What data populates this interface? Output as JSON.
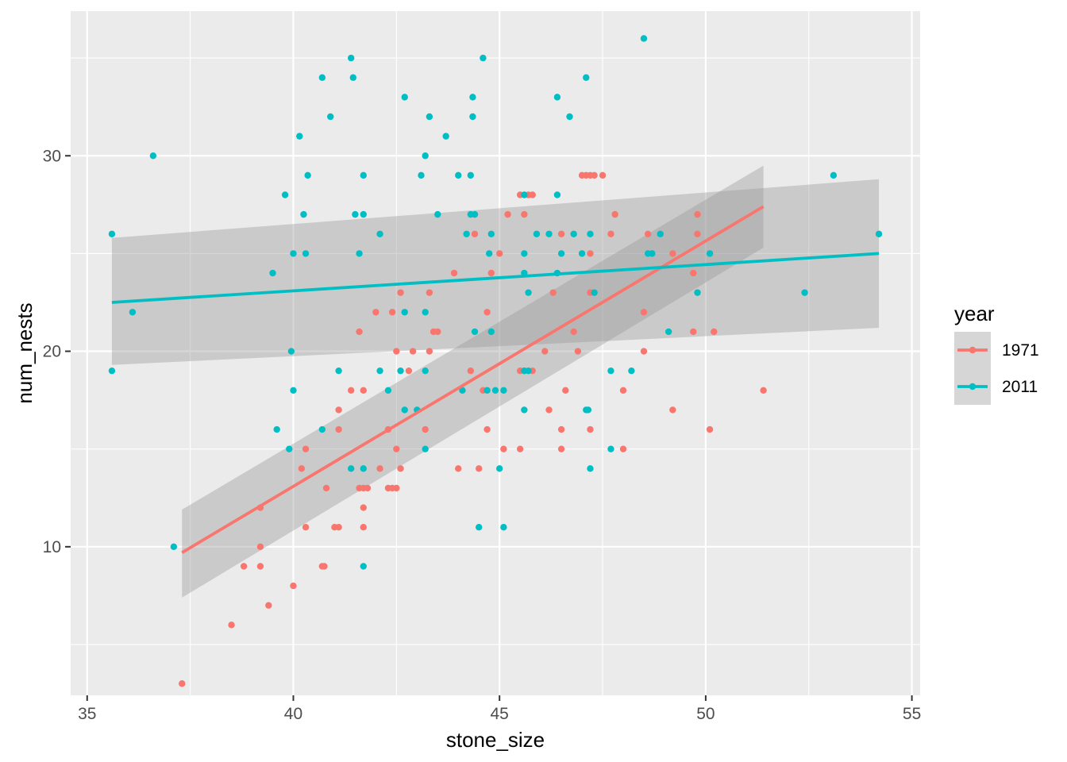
{
  "chart_data": {
    "type": "scatter",
    "xlabel": "stone_size",
    "ylabel": "num_nests",
    "xlim": [
      34.6,
      55.2
    ],
    "ylim": [
      2.4,
      37.4
    ],
    "x_ticks": [
      35,
      40,
      45,
      50,
      55
    ],
    "y_ticks": [
      10,
      20,
      30
    ],
    "x_tick_labels": [
      "35",
      "40",
      "45",
      "50",
      "55"
    ],
    "y_tick_labels": [
      "10",
      "20",
      "30"
    ],
    "grid": true,
    "background": "#ebebeb",
    "legend": {
      "title": "year",
      "position": "right"
    },
    "series": [
      {
        "name": "1971",
        "color": "#f8766d",
        "points": [
          [
            37.3,
            3
          ],
          [
            38.5,
            6
          ],
          [
            38.8,
            9
          ],
          [
            39.2,
            9
          ],
          [
            39.2,
            10
          ],
          [
            39.2,
            12
          ],
          [
            39.4,
            7
          ],
          [
            40.0,
            8
          ],
          [
            40.2,
            14
          ],
          [
            40.3,
            11
          ],
          [
            40.3,
            15
          ],
          [
            40.7,
            9
          ],
          [
            40.75,
            9
          ],
          [
            40.8,
            13
          ],
          [
            41.0,
            11
          ],
          [
            41.1,
            11
          ],
          [
            41.1,
            16
          ],
          [
            41.1,
            17
          ],
          [
            41.4,
            18
          ],
          [
            41.6,
            21
          ],
          [
            41.6,
            13
          ],
          [
            41.7,
            13
          ],
          [
            41.7,
            12
          ],
          [
            41.7,
            11
          ],
          [
            41.7,
            18
          ],
          [
            41.8,
            13
          ],
          [
            42.0,
            22
          ],
          [
            42.1,
            14
          ],
          [
            42.3,
            16
          ],
          [
            42.3,
            13
          ],
          [
            42.4,
            13
          ],
          [
            42.4,
            22
          ],
          [
            42.5,
            13
          ],
          [
            42.5,
            15
          ],
          [
            42.5,
            20
          ],
          [
            42.6,
            14
          ],
          [
            42.6,
            23
          ],
          [
            42.8,
            19
          ],
          [
            42.9,
            20
          ],
          [
            43.2,
            16
          ],
          [
            43.3,
            20
          ],
          [
            43.3,
            23
          ],
          [
            43.4,
            21
          ],
          [
            43.5,
            21
          ],
          [
            43.9,
            24
          ],
          [
            44.0,
            14
          ],
          [
            44.3,
            19
          ],
          [
            44.4,
            26
          ],
          [
            44.5,
            14
          ],
          [
            44.6,
            18
          ],
          [
            44.7,
            16
          ],
          [
            44.7,
            22
          ],
          [
            44.8,
            24
          ],
          [
            45.0,
            25
          ],
          [
            45.1,
            15
          ],
          [
            45.2,
            27
          ],
          [
            45.5,
            19
          ],
          [
            45.5,
            28
          ],
          [
            45.5,
            15
          ],
          [
            45.6,
            19
          ],
          [
            45.6,
            27
          ],
          [
            45.7,
            28
          ],
          [
            45.8,
            28
          ],
          [
            45.8,
            19
          ],
          [
            46.1,
            20
          ],
          [
            46.2,
            17
          ],
          [
            46.3,
            23
          ],
          [
            46.5,
            26
          ],
          [
            46.5,
            16
          ],
          [
            46.6,
            18
          ],
          [
            46.5,
            15
          ],
          [
            46.8,
            21
          ],
          [
            46.9,
            20
          ],
          [
            47.0,
            29
          ],
          [
            47.1,
            29
          ],
          [
            47.2,
            29
          ],
          [
            47.3,
            29
          ],
          [
            47.5,
            29
          ],
          [
            47.2,
            25
          ],
          [
            47.2,
            16
          ],
          [
            47.2,
            23
          ],
          [
            47.7,
            26
          ],
          [
            47.8,
            27
          ],
          [
            48.0,
            18
          ],
          [
            48.0,
            15
          ],
          [
            48.5,
            22
          ],
          [
            48.5,
            20
          ],
          [
            48.6,
            26
          ],
          [
            49.2,
            17
          ],
          [
            49.2,
            25
          ],
          [
            49.7,
            24
          ],
          [
            49.7,
            21
          ],
          [
            49.8,
            26
          ],
          [
            49.8,
            27
          ],
          [
            50.1,
            16
          ],
          [
            50.2,
            21
          ],
          [
            51.4,
            18
          ]
        ],
        "trend": {
          "x": [
            37.3,
            51.4
          ],
          "y": [
            9.7,
            27.4
          ],
          "ci_low": [
            7.4,
            25.3
          ],
          "ci_high": [
            11.9,
            29.5
          ]
        }
      },
      {
        "name": "2011",
        "color": "#00bfc4",
        "points": [
          [
            35.6,
            26
          ],
          [
            35.6,
            19
          ],
          [
            36.1,
            22
          ],
          [
            36.6,
            30
          ],
          [
            37.1,
            10
          ],
          [
            39.5,
            24
          ],
          [
            39.6,
            16
          ],
          [
            39.8,
            28
          ],
          [
            39.9,
            15
          ],
          [
            39.95,
            20
          ],
          [
            40.0,
            25
          ],
          [
            40.0,
            18
          ],
          [
            40.15,
            31
          ],
          [
            40.25,
            27
          ],
          [
            40.3,
            25
          ],
          [
            40.35,
            29
          ],
          [
            40.7,
            34
          ],
          [
            40.7,
            16
          ],
          [
            40.9,
            32
          ],
          [
            41.1,
            19
          ],
          [
            41.4,
            35
          ],
          [
            41.45,
            34
          ],
          [
            41.4,
            14
          ],
          [
            41.5,
            27
          ],
          [
            41.6,
            25
          ],
          [
            41.7,
            27
          ],
          [
            41.7,
            29
          ],
          [
            41.7,
            14
          ],
          [
            41.7,
            9
          ],
          [
            42.1,
            19
          ],
          [
            42.1,
            26
          ],
          [
            42.3,
            18
          ],
          [
            42.6,
            19
          ],
          [
            42.7,
            33
          ],
          [
            42.7,
            17
          ],
          [
            42.7,
            22
          ],
          [
            43.0,
            17
          ],
          [
            43.1,
            29
          ],
          [
            43.2,
            30
          ],
          [
            43.2,
            22
          ],
          [
            43.2,
            19
          ],
          [
            43.2,
            15
          ],
          [
            43.3,
            32
          ],
          [
            43.5,
            27
          ],
          [
            43.7,
            31
          ],
          [
            44.0,
            29
          ],
          [
            44.1,
            18
          ],
          [
            44.2,
            26
          ],
          [
            44.3,
            27
          ],
          [
            44.35,
            33
          ],
          [
            44.35,
            32
          ],
          [
            44.3,
            29
          ],
          [
            44.4,
            27
          ],
          [
            44.4,
            21
          ],
          [
            44.5,
            11
          ],
          [
            44.6,
            35
          ],
          [
            44.7,
            18
          ],
          [
            44.75,
            25
          ],
          [
            44.8,
            26
          ],
          [
            44.8,
            21
          ],
          [
            44.9,
            18
          ],
          [
            45.0,
            14
          ],
          [
            45.1,
            11
          ],
          [
            45.1,
            18
          ],
          [
            45.6,
            25
          ],
          [
            45.6,
            28
          ],
          [
            45.6,
            24
          ],
          [
            45.6,
            17
          ],
          [
            45.6,
            19
          ],
          [
            45.7,
            19
          ],
          [
            45.7,
            23
          ],
          [
            45.9,
            26
          ],
          [
            46.2,
            26
          ],
          [
            46.4,
            33
          ],
          [
            46.4,
            28
          ],
          [
            46.4,
            24
          ],
          [
            46.5,
            25
          ],
          [
            46.7,
            32
          ],
          [
            46.8,
            26
          ],
          [
            47.0,
            25
          ],
          [
            47.1,
            34
          ],
          [
            47.1,
            17
          ],
          [
            47.15,
            17
          ],
          [
            47.2,
            14
          ],
          [
            47.2,
            26
          ],
          [
            47.3,
            23
          ],
          [
            47.7,
            19
          ],
          [
            47.7,
            15
          ],
          [
            48.2,
            19
          ],
          [
            48.5,
            36
          ],
          [
            48.6,
            25
          ],
          [
            48.7,
            25
          ],
          [
            48.9,
            26
          ],
          [
            49.1,
            21
          ],
          [
            49.8,
            23
          ],
          [
            50.1,
            25
          ],
          [
            52.4,
            23
          ],
          [
            53.1,
            29
          ],
          [
            54.2,
            26
          ]
        ],
        "trend": {
          "x": [
            35.6,
            54.2
          ],
          "y": [
            22.5,
            25.0
          ],
          "ci_low": [
            19.3,
            21.2
          ],
          "ci_high": [
            25.8,
            28.8
          ]
        }
      }
    ]
  }
}
